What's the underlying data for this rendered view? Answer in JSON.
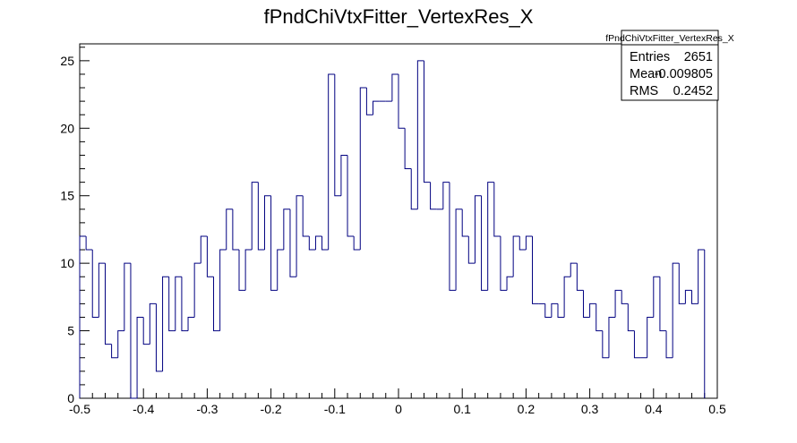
{
  "chart_data": {
    "type": "histogram",
    "title": "fPndChiVtxFitter_VertexRes_X",
    "xlabel": "",
    "ylabel": "",
    "xlim": [
      -0.5,
      0.5
    ],
    "ylim": [
      0,
      26.25
    ],
    "bin_width": 0.01,
    "x_ticks": [
      -0.5,
      -0.4,
      -0.3,
      -0.2,
      -0.1,
      0,
      0.1,
      0.2,
      0.3,
      0.4,
      0.5
    ],
    "x_tick_labels": [
      "-0.5",
      "-0.4",
      "-0.3",
      "-0.2",
      "-0.1",
      "0",
      "0.1",
      "0.2",
      "0.3",
      "0.4",
      "0.5"
    ],
    "y_ticks": [
      0,
      5,
      10,
      15,
      20,
      25
    ],
    "y_tick_labels": [
      "0",
      "5",
      "10",
      "15",
      "20",
      "25"
    ],
    "line_color": "#000080",
    "values": [
      12,
      11,
      6,
      10,
      4,
      3,
      5,
      10,
      0,
      6,
      4,
      7,
      2,
      9,
      5,
      9,
      5,
      6,
      10,
      12,
      9,
      5,
      11,
      14,
      11,
      8,
      11,
      16,
      11,
      15,
      8,
      11,
      14,
      9,
      15,
      12,
      11,
      12,
      11,
      24,
      15,
      18,
      12,
      11,
      23,
      21,
      22,
      22,
      22,
      24,
      20,
      17,
      14,
      25,
      16,
      14,
      14,
      16,
      8,
      14,
      12,
      10,
      15,
      8,
      16,
      12,
      8,
      9,
      12,
      11,
      12,
      7,
      7,
      6,
      7,
      6,
      9,
      10,
      8,
      6,
      7,
      5,
      3,
      6,
      8,
      7,
      5,
      3,
      3,
      6,
      9,
      5,
      3,
      10,
      7,
      8,
      7,
      11
    ],
    "stats": {
      "name": "fPndChiVtxFitter_VertexRes_X",
      "rows": [
        {
          "label": "Entries",
          "value": "2651"
        },
        {
          "label": "Mean",
          "value": "-0.009805"
        },
        {
          "label": "RMS",
          "value": "0.2452"
        }
      ]
    }
  }
}
